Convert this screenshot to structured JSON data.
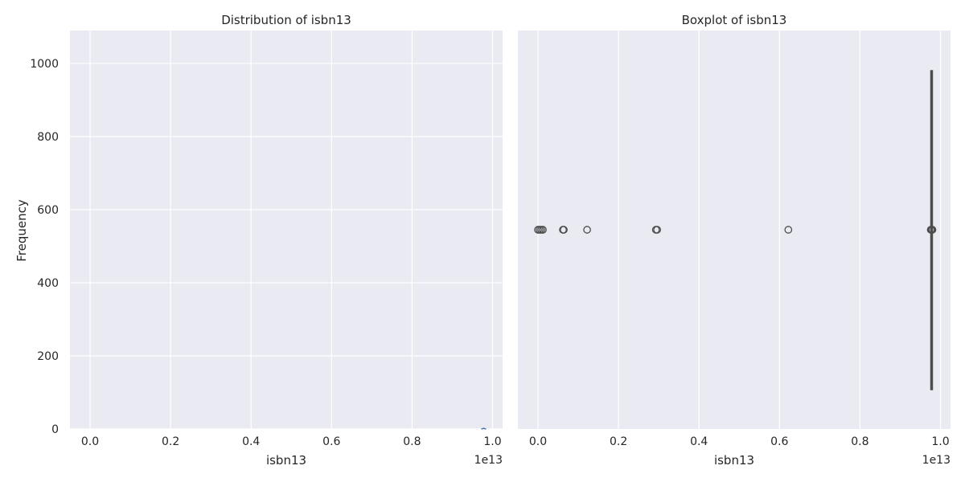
{
  "chart_data": [
    {
      "type": "histogram",
      "title": "Distribution of isbn13",
      "xlabel": "isbn13",
      "ylabel": "Frequency",
      "x_offset_label": "1e13",
      "xlim": [
        -0.05,
        1.025
      ],
      "ylim": [
        0,
        1090
      ],
      "x_ticks": [
        0.0,
        0.2,
        0.4,
        0.6,
        0.8,
        1.0
      ],
      "x_tick_labels": [
        "0.0",
        "0.2",
        "0.4",
        "0.6",
        "0.8",
        "1.0"
      ],
      "y_ticks": [
        0,
        200,
        400,
        600,
        800,
        1000
      ],
      "y_tick_labels": [
        "0",
        "200",
        "400",
        "600",
        "800",
        "1000"
      ],
      "grid": true,
      "kde_color": "#4c72b0",
      "kde_points": [
        [
          0.972,
          0
        ],
        [
          0.976,
          1
        ],
        [
          0.978,
          2
        ],
        [
          0.98,
          1
        ],
        [
          0.984,
          0
        ]
      ]
    },
    {
      "type": "boxplot",
      "title": "Boxplot of isbn13",
      "xlabel": "isbn13",
      "ylabel": "",
      "x_offset_label": "1e13",
      "xlim": [
        -0.05,
        1.025
      ],
      "x_ticks": [
        0.0,
        0.2,
        0.4,
        0.6,
        0.8,
        1.0
      ],
      "x_tick_labels": [
        "0.0",
        "0.2",
        "0.4",
        "0.6",
        "0.8",
        "1.0"
      ],
      "grid": true,
      "box": {
        "whisker_low": 0.978,
        "q1": 0.978,
        "median": 0.978,
        "q3": 0.978,
        "whisker_high": 0.978
      },
      "outliers": [
        0.0,
        0.004,
        0.008,
        0.012,
        0.062,
        0.064,
        0.122,
        0.293,
        0.296,
        0.622,
        0.976,
        0.978,
        0.98
      ],
      "box_color": "#4c72b0",
      "line_color": "#4d4d4d"
    }
  ]
}
